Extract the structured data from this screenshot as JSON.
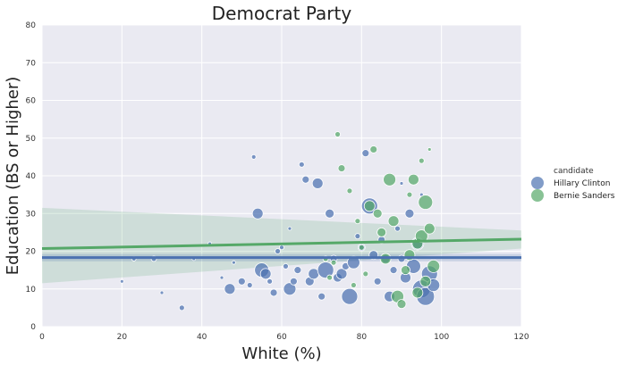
{
  "chart_data": {
    "type": "scatter",
    "title": "Democrat Party",
    "xlabel": "White (%)",
    "ylabel": "Education (BS or Higher)",
    "xlim": [
      0,
      120
    ],
    "ylim": [
      0,
      80
    ],
    "xticks": [
      0,
      20,
      40,
      60,
      80,
      100,
      120
    ],
    "yticks": [
      0,
      10,
      20,
      30,
      40,
      50,
      60,
      70,
      80
    ],
    "grid": true,
    "legend": {
      "title": "candidate",
      "placement": "right"
    },
    "series": [
      {
        "name": "Hillary Clinton",
        "color": "#4c72b0",
        "regression": {
          "x": [
            0,
            120
          ],
          "y": [
            18.3,
            18.3
          ]
        },
        "points": [
          [
            35,
            5,
            3
          ],
          [
            47,
            10,
            6
          ],
          [
            50,
            12,
            4
          ],
          [
            52,
            11,
            3
          ],
          [
            53,
            45,
            2.5
          ],
          [
            54,
            30,
            6
          ],
          [
            55,
            15,
            8
          ],
          [
            56,
            14,
            6
          ],
          [
            57,
            12,
            3
          ],
          [
            58,
            9,
            4
          ],
          [
            59,
            20,
            3
          ],
          [
            60,
            21,
            2.5
          ],
          [
            61,
            16,
            3
          ],
          [
            62,
            10,
            7
          ],
          [
            63,
            12,
            4
          ],
          [
            64,
            15,
            4
          ],
          [
            65,
            43,
            3
          ],
          [
            66,
            39,
            4
          ],
          [
            67,
            12,
            5
          ],
          [
            68,
            14,
            6
          ],
          [
            69,
            38,
            6
          ],
          [
            70,
            8,
            4
          ],
          [
            71,
            15,
            9
          ],
          [
            72,
            30,
            5
          ],
          [
            73,
            18,
            4
          ],
          [
            74,
            13,
            5
          ],
          [
            75,
            14,
            6
          ],
          [
            76,
            16,
            4
          ],
          [
            77,
            8,
            9
          ],
          [
            78,
            17,
            7
          ],
          [
            79,
            24,
            3
          ],
          [
            80,
            21,
            4
          ],
          [
            81,
            46,
            4
          ],
          [
            82,
            32,
            9
          ],
          [
            83,
            19,
            5
          ],
          [
            84,
            12,
            4
          ],
          [
            85,
            23,
            4
          ],
          [
            86,
            18,
            5
          ],
          [
            87,
            8,
            6
          ],
          [
            88,
            15,
            4
          ],
          [
            89,
            26,
            3
          ],
          [
            90,
            18,
            4
          ],
          [
            91,
            13,
            6
          ],
          [
            92,
            30,
            5
          ],
          [
            93,
            16,
            8
          ],
          [
            94,
            22,
            7
          ],
          [
            95,
            10,
            10
          ],
          [
            96,
            8,
            10
          ],
          [
            97,
            14,
            9
          ],
          [
            98,
            11,
            7
          ],
          [
            28,
            18,
            3
          ],
          [
            23,
            18,
            2.5
          ],
          [
            20,
            12,
            2
          ],
          [
            42,
            22,
            2
          ],
          [
            38,
            18,
            2
          ],
          [
            30,
            9,
            2
          ],
          [
            45,
            13,
            2
          ],
          [
            48,
            17,
            2
          ],
          [
            62,
            26,
            2
          ],
          [
            90,
            38,
            2
          ],
          [
            95,
            35,
            2
          ]
        ]
      },
      {
        "name": "Bernie Sanders",
        "color": "#55a868",
        "regression": {
          "x": [
            0,
            120
          ],
          "y": [
            20.7,
            23.2
          ]
        },
        "points": [
          [
            74,
            51,
            3
          ],
          [
            75,
            42,
            4
          ],
          [
            77,
            36,
            3
          ],
          [
            79,
            28,
            3
          ],
          [
            80,
            21,
            3
          ],
          [
            82,
            32,
            6
          ],
          [
            83,
            47,
            4
          ],
          [
            84,
            30,
            5
          ],
          [
            85,
            25,
            5
          ],
          [
            86,
            18,
            6
          ],
          [
            87,
            39,
            7
          ],
          [
            88,
            28,
            6
          ],
          [
            89,
            8,
            7
          ],
          [
            90,
            6,
            5
          ],
          [
            91,
            15,
            5
          ],
          [
            92,
            19,
            6
          ],
          [
            93,
            39,
            6
          ],
          [
            94,
            22,
            6
          ],
          [
            95,
            24,
            7
          ],
          [
            96,
            33,
            8
          ],
          [
            97,
            26,
            6
          ],
          [
            98,
            16,
            7
          ],
          [
            96,
            12,
            6
          ],
          [
            94,
            9,
            6
          ],
          [
            71,
            18,
            3
          ],
          [
            73,
            17,
            3
          ],
          [
            78,
            11,
            3
          ],
          [
            81,
            14,
            3
          ],
          [
            72,
            13,
            3
          ],
          [
            92,
            35,
            3
          ],
          [
            95,
            44,
            3
          ],
          [
            97,
            47,
            2
          ]
        ]
      }
    ]
  }
}
